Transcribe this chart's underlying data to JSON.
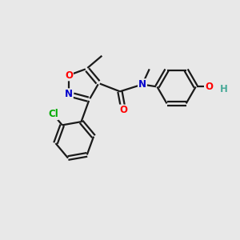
{
  "background_color": "#e8e8e8",
  "bond_color": "#1a1a1a",
  "atom_colors": {
    "O": "#ff0000",
    "N": "#0000cc",
    "Cl": "#00aa00",
    "C": "#1a1a1a",
    "H": "#4aaa99",
    "default": "#1a1a1a"
  },
  "figsize": [
    3.0,
    3.0
  ],
  "dpi": 100
}
